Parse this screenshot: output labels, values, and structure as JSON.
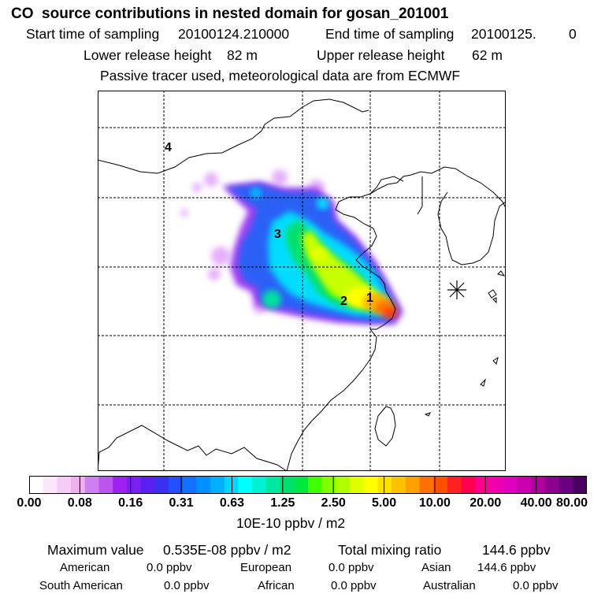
{
  "title": "CO  source contributions in nested domain for gosan_201001",
  "sampling": {
    "start_label": "Start time of sampling",
    "start_value": "20100124.210000",
    "end_label": "End time of sampling",
    "end_value": "20100125.",
    "end_suffix": "0"
  },
  "release": {
    "lower_label": "Lower release height",
    "lower_value": "82 m",
    "upper_label": "Upper release height",
    "upper_value": "62 m"
  },
  "note": "Passive tracer used, meteorological data are from ECMWF",
  "map": {
    "region_labels": [
      "4",
      "3",
      "2",
      "1"
    ],
    "station_marker": "asterisk-station-icon"
  },
  "colorbar": {
    "ticks": [
      "0.00",
      "0.08",
      "0.16",
      "0.31",
      "0.63",
      "1.25",
      "2.50",
      "5.00",
      "10.00",
      "20.00",
      "40.00",
      "80.00"
    ],
    "unit": "10E-10 ppbv / m2",
    "colors": [
      "#ffffff",
      "#fbe6fb",
      "#f5ccf5",
      "#eeb0ee",
      "#cf7fef",
      "#bb55ef",
      "#a020f0",
      "#7a20f0",
      "#5a20f0",
      "#3a30f0",
      "#2050ff",
      "#1070ff",
      "#0090ff",
      "#00b0ff",
      "#00d8ff",
      "#00ffff",
      "#00f0d0",
      "#00e8a0",
      "#00e070",
      "#00e840",
      "#40ff00",
      "#80ff00",
      "#b0ff00",
      "#e0ff00",
      "#ffff00",
      "#ffe000",
      "#ffc000",
      "#ffa000",
      "#ff7000",
      "#ff5000",
      "#ff2020",
      "#ff0050",
      "#ff0090",
      "#f000b0",
      "#e000c0",
      "#c800b0",
      "#b000a0",
      "#8c0090",
      "#6c0080",
      "#4a0060"
    ]
  },
  "stats": {
    "max_label": "Maximum value",
    "max_value": "0.535E-08 ppbv / m2",
    "total_label": "Total mixing ratio",
    "total_value": "144.6 ppbv",
    "american_label": "American",
    "american_value": "0.0 ppbv",
    "european_label": "European",
    "european_value": "0.0 ppbv",
    "asian_label": "Asian",
    "asian_value": "144.6 ppbv",
    "south_american_label": "South American",
    "south_american_value": "0.0 ppbv",
    "african_label": "African",
    "african_value": "0.0 ppbv",
    "australian_label": "Australian",
    "australian_value": "0.0 ppbv"
  }
}
